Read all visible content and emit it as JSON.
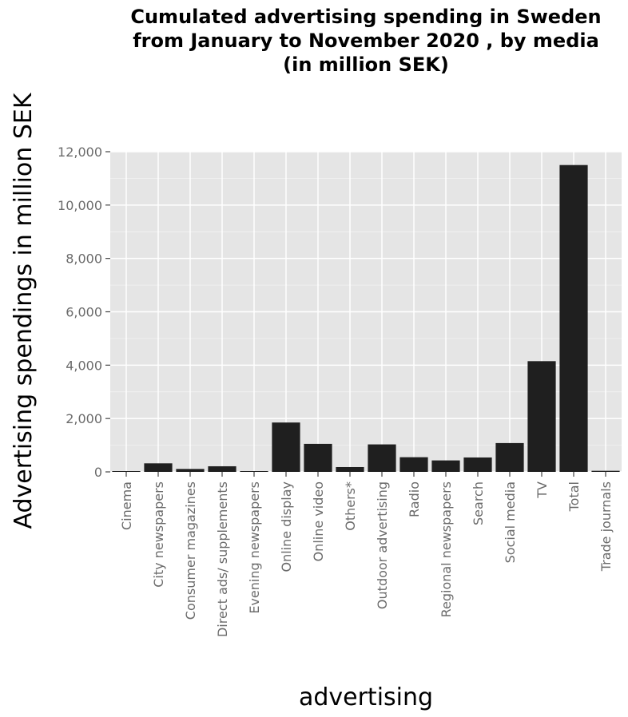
{
  "chart_data": {
    "type": "bar",
    "title_lines": [
      "Cumulated advertising spending in Sweden",
      "from January to November 2020 , by media",
      "(in million SEK)"
    ],
    "xlabel": "advertising",
    "ylabel": "Advertising spendings in million SEK",
    "ylim": [
      0,
      12000
    ],
    "yticks": [
      0,
      2000,
      4000,
      6000,
      8000,
      10000,
      12000
    ],
    "ytick_labels": [
      "0",
      "2,000",
      "4,000",
      "6,000",
      "8,000",
      "10,000",
      "12,000"
    ],
    "categories": [
      "Cinema",
      "City newspapers",
      "Consumer magazines",
      "Direct ads/ supplements",
      "Evening newspapers",
      "Online display",
      "Online video",
      "Others*",
      "Outdoor advertising",
      "Radio",
      "Regional newspapers",
      "Search",
      "Social media",
      "TV",
      "Total",
      "Trade journals"
    ],
    "values": [
      10,
      320,
      110,
      210,
      30,
      1850,
      1050,
      180,
      1030,
      550,
      430,
      540,
      1080,
      4150,
      11500,
      40
    ],
    "grid": true,
    "background": "#e5e5e5",
    "bar_color": "#1f1f1f",
    "grid_color": "#ffffff"
  }
}
